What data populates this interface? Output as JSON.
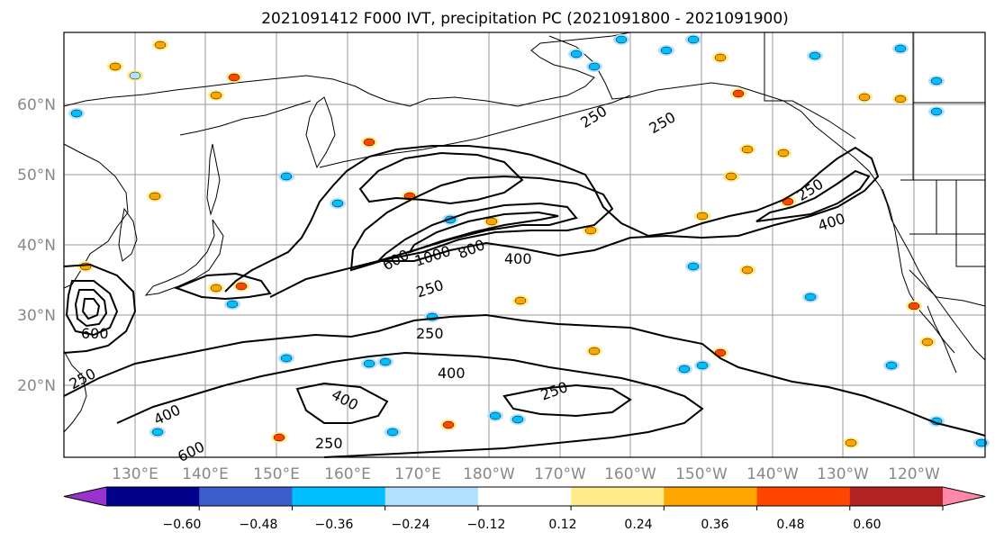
{
  "title": "2021091412 F000 IVT, precipitation PC (2021091800 - 2021091900)",
  "lat_ticks": [
    "20°N",
    "30°N",
    "40°N",
    "50°N",
    "60°N"
  ],
  "lon_ticks": [
    "130°E",
    "140°E",
    "150°E",
    "160°E",
    "170°E",
    "180°W",
    "170°W",
    "160°W",
    "150°W",
    "140°W",
    "130°W",
    "120°W"
  ],
  "colorbar": {
    "tick_labels": [
      "−0.60",
      "−0.48",
      "−0.36",
      "−0.24",
      "−0.12",
      "0.12",
      "0.24",
      "0.36",
      "0.48",
      "0.60"
    ],
    "colors": [
      "#9933cc",
      "#00008b",
      "#3a5fcd",
      "#00bfff",
      "#b0e2ff",
      "#ffffff",
      "#ffec8b",
      "#ffa500",
      "#ff4500",
      "#b22222",
      "#ff88aa"
    ]
  },
  "contour_labels": [
    "250",
    "250",
    "250",
    "250",
    "250",
    "250",
    "250",
    "250",
    "400",
    "400",
    "400",
    "400",
    "400",
    "600",
    "800",
    "1000",
    "600",
    "600"
  ]
}
